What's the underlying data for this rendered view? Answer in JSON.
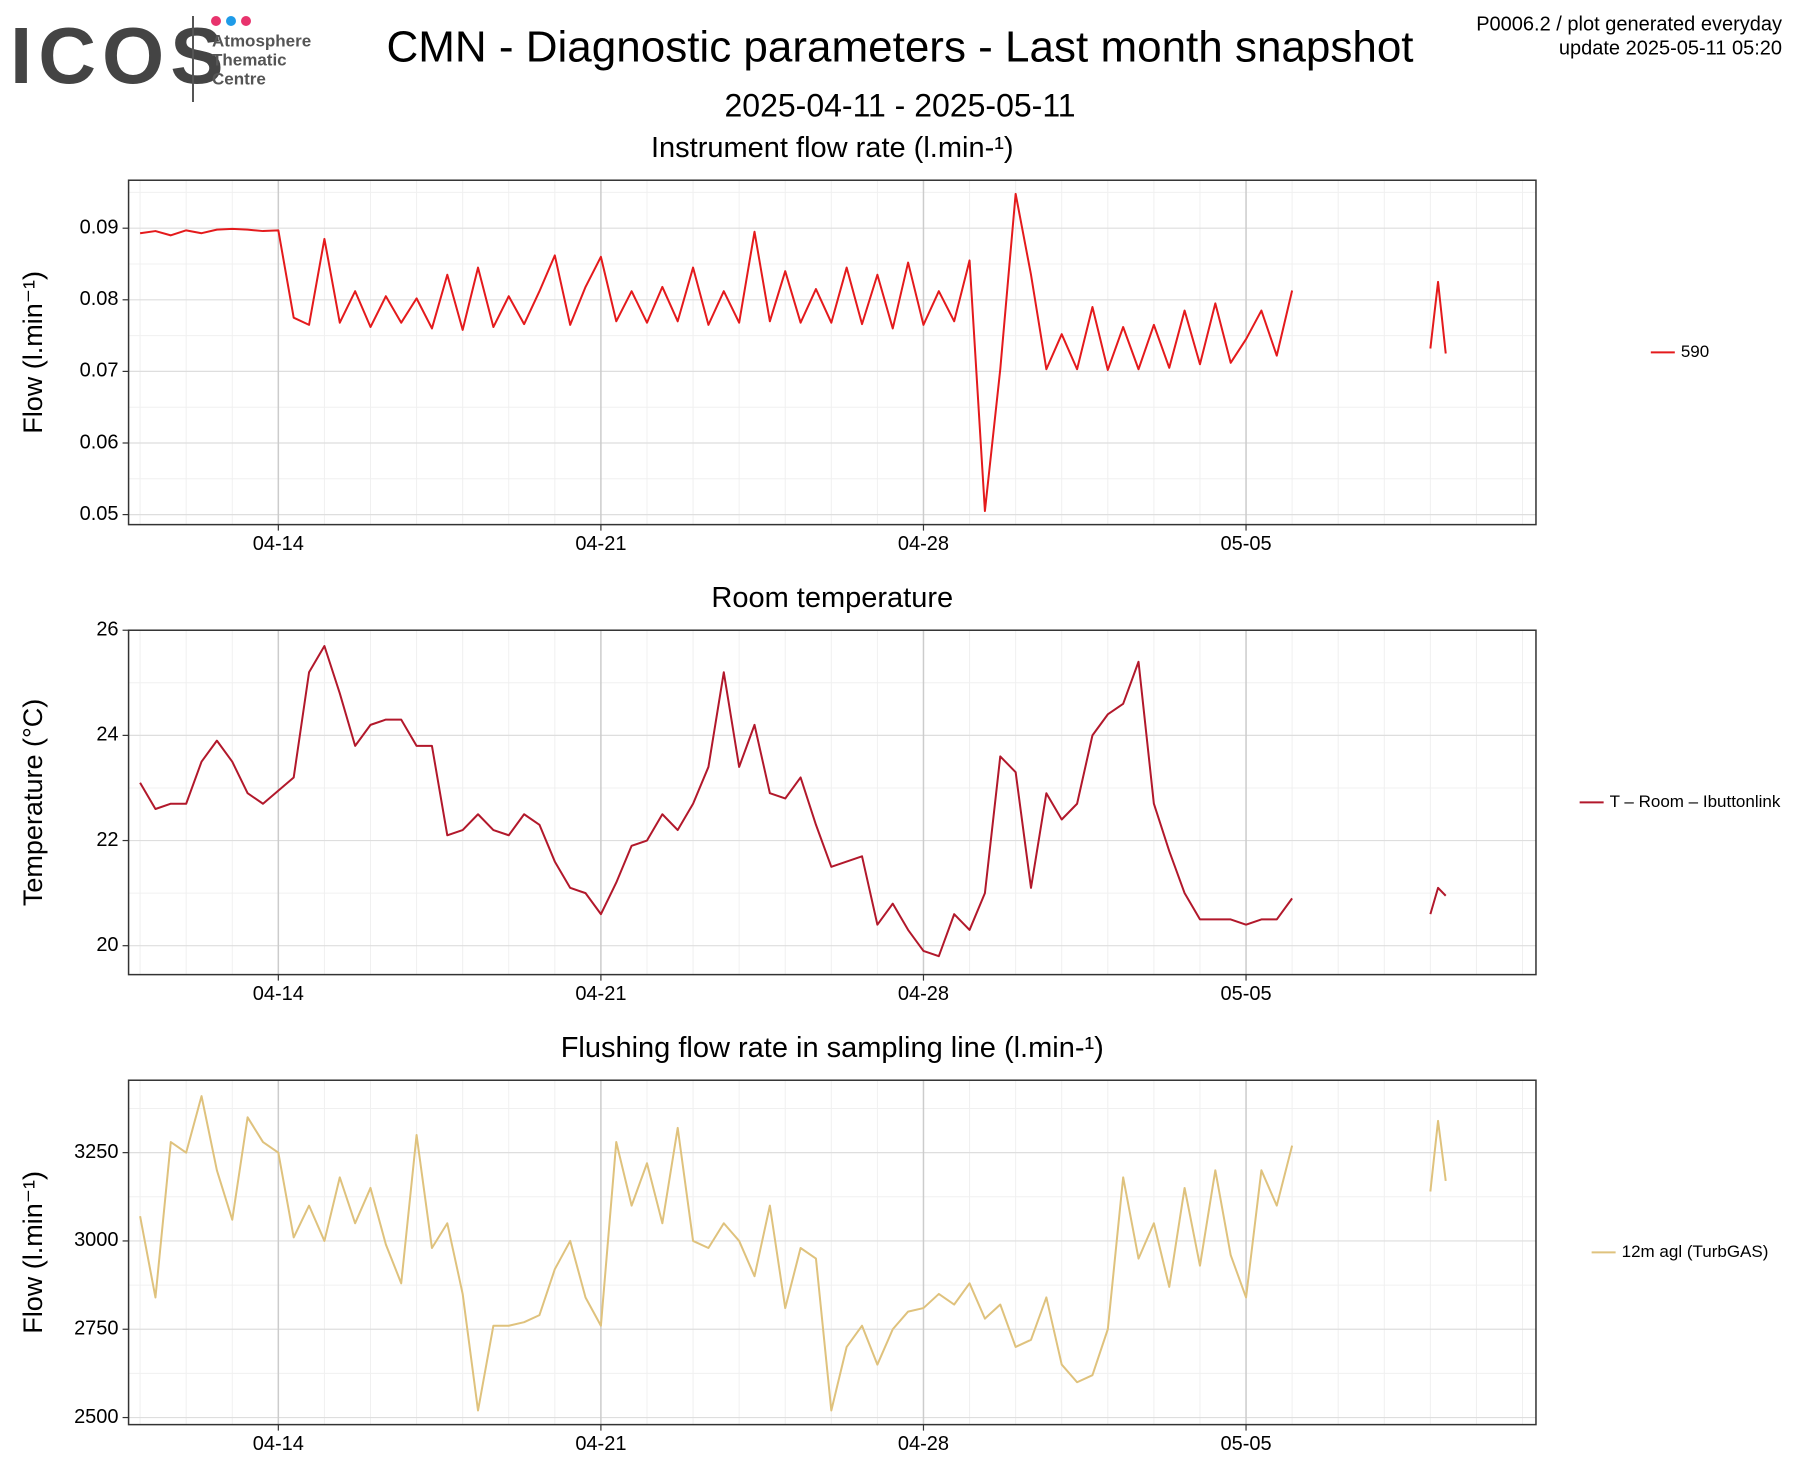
{
  "header": {
    "logo": "ICOS",
    "logo_lines": [
      "Atmosphere",
      "Thematic",
      "Centre"
    ],
    "title": "CMN - Diagnostic parameters - Last month snapshot",
    "subtitle": "2025-04-11 - 2025-05-11",
    "info": [
      "P0006.2 / plot generated everyday",
      "update  2025-05-11 05:20"
    ]
  },
  "chart_data": [
    {
      "type": "line",
      "title": "Instrument flow rate (l.min-¹)",
      "y_label": "Flow (l.min⁻¹)",
      "x": [
        "2025-04-11 00:00",
        "2025-04-11 08:00",
        "2025-04-11 16:00",
        "2025-04-12 00:00",
        "2025-04-12 08:00",
        "2025-04-12 16:00",
        "2025-04-13 00:00",
        "2025-04-13 08:00",
        "2025-04-13 16:00",
        "2025-04-14 00:00",
        "2025-04-14 08:00",
        "2025-04-14 16:00",
        "2025-04-15 00:00",
        "2025-04-15 08:00",
        "2025-04-15 16:00",
        "2025-04-16 00:00",
        "2025-04-16 08:00",
        "2025-04-16 16:00",
        "2025-04-17 00:00",
        "2025-04-17 08:00",
        "2025-04-17 16:00",
        "2025-04-18 00:00",
        "2025-04-18 08:00",
        "2025-04-18 16:00",
        "2025-04-19 00:00",
        "2025-04-19 08:00",
        "2025-04-19 16:00",
        "2025-04-20 00:00",
        "2025-04-20 08:00",
        "2025-04-20 16:00",
        "2025-04-21 00:00",
        "2025-04-21 08:00",
        "2025-04-21 16:00",
        "2025-04-22 00:00",
        "2025-04-22 08:00",
        "2025-04-22 16:00",
        "2025-04-23 00:00",
        "2025-04-23 08:00",
        "2025-04-23 16:00",
        "2025-04-24 00:00",
        "2025-04-24 08:00",
        "2025-04-24 16:00",
        "2025-04-25 00:00",
        "2025-04-25 08:00",
        "2025-04-25 16:00",
        "2025-04-26 00:00",
        "2025-04-26 08:00",
        "2025-04-26 16:00",
        "2025-04-27 00:00",
        "2025-04-27 08:00",
        "2025-04-27 16:00",
        "2025-04-28 00:00",
        "2025-04-28 08:00",
        "2025-04-28 16:00",
        "2025-04-29 00:00",
        "2025-04-29 08:00",
        "2025-04-29 16:00",
        "2025-04-30 00:00",
        "2025-04-30 08:00",
        "2025-04-30 16:00",
        "2025-05-01 00:00",
        "2025-05-01 08:00",
        "2025-05-01 16:00",
        "2025-05-02 00:00",
        "2025-05-02 08:00",
        "2025-05-02 16:00",
        "2025-05-03 00:00",
        "2025-05-03 08:00",
        "2025-05-03 16:00",
        "2025-05-04 00:00",
        "2025-05-04 08:00",
        "2025-05-04 16:00",
        "2025-05-05 00:00",
        "2025-05-05 08:00",
        "2025-05-05 16:00",
        "2025-05-06 00:00",
        "2025-05-07 12:00",
        "2025-05-09 00:00",
        "2025-05-09 04:00",
        "2025-05-09 08:00"
      ],
      "series": [
        {
          "name": "590",
          "color": "#e41a1c",
          "values": [
            0.0893,
            0.0896,
            0.089,
            0.0897,
            0.0893,
            0.0898,
            0.0899,
            0.0898,
            0.0896,
            0.0897,
            0.0775,
            0.0765,
            0.0885,
            0.0768,
            0.0812,
            0.0762,
            0.0805,
            0.0768,
            0.0802,
            0.076,
            0.0835,
            0.0758,
            0.0845,
            0.0762,
            0.0805,
            0.0766,
            0.0812,
            0.0862,
            0.0765,
            0.0818,
            0.086,
            0.077,
            0.0812,
            0.0768,
            0.0818,
            0.077,
            0.0845,
            0.0765,
            0.0812,
            0.0768,
            0.0895,
            0.077,
            0.084,
            0.0768,
            0.0815,
            0.0768,
            0.0845,
            0.0766,
            0.0835,
            0.076,
            0.0852,
            0.0765,
            0.0812,
            0.077,
            0.0855,
            0.0505,
            0.0703,
            0.0948,
            0.0835,
            0.0703,
            0.0752,
            0.0703,
            0.079,
            0.0702,
            0.0762,
            0.0703,
            0.0765,
            0.0705,
            0.0785,
            0.071,
            0.0795,
            0.0712,
            0.0745,
            0.0785,
            0.0722,
            0.0813,
            null,
            0.0732,
            0.0825,
            0.0725
          ]
        }
      ],
      "xlim": [
        "2025-04-10 18:00",
        "2025-05-11 07:00"
      ],
      "xticks": [
        {
          "value": "2025-04-14 00:00",
          "label": "04-14"
        },
        {
          "value": "2025-04-21 00:00",
          "label": "04-21"
        },
        {
          "value": "2025-04-28 00:00",
          "label": "04-28"
        },
        {
          "value": "2025-05-05 00:00",
          "label": "05-05"
        }
      ],
      "ylim": [
        0.0486,
        0.0967
      ],
      "yticks": [
        0.05,
        0.06,
        0.07,
        0.08,
        0.09
      ],
      "grid": true,
      "legend": "right"
    },
    {
      "type": "line",
      "title": "Room temperature",
      "y_label": "Temperature (°C)",
      "x": [
        "2025-04-11 00:00",
        "2025-04-11 08:00",
        "2025-04-11 16:00",
        "2025-04-12 00:00",
        "2025-04-12 08:00",
        "2025-04-12 16:00",
        "2025-04-13 00:00",
        "2025-04-13 08:00",
        "2025-04-13 16:00",
        "2025-04-14 00:00",
        "2025-04-14 08:00",
        "2025-04-14 16:00",
        "2025-04-15 00:00",
        "2025-04-15 08:00",
        "2025-04-15 16:00",
        "2025-04-16 00:00",
        "2025-04-16 08:00",
        "2025-04-16 16:00",
        "2025-04-17 00:00",
        "2025-04-17 08:00",
        "2025-04-17 16:00",
        "2025-04-18 00:00",
        "2025-04-18 08:00",
        "2025-04-18 16:00",
        "2025-04-19 00:00",
        "2025-04-19 08:00",
        "2025-04-19 16:00",
        "2025-04-20 00:00",
        "2025-04-20 08:00",
        "2025-04-20 16:00",
        "2025-04-21 00:00",
        "2025-04-21 08:00",
        "2025-04-21 16:00",
        "2025-04-22 00:00",
        "2025-04-22 08:00",
        "2025-04-22 16:00",
        "2025-04-23 00:00",
        "2025-04-23 08:00",
        "2025-04-23 16:00",
        "2025-04-24 00:00",
        "2025-04-24 08:00",
        "2025-04-24 16:00",
        "2025-04-25 00:00",
        "2025-04-25 08:00",
        "2025-04-25 16:00",
        "2025-04-26 00:00",
        "2025-04-26 08:00",
        "2025-04-26 16:00",
        "2025-04-27 00:00",
        "2025-04-27 08:00",
        "2025-04-27 16:00",
        "2025-04-28 00:00",
        "2025-04-28 08:00",
        "2025-04-28 16:00",
        "2025-04-29 00:00",
        "2025-04-29 08:00",
        "2025-04-29 16:00",
        "2025-04-30 00:00",
        "2025-04-30 08:00",
        "2025-04-30 16:00",
        "2025-05-01 00:00",
        "2025-05-01 08:00",
        "2025-05-01 16:00",
        "2025-05-02 00:00",
        "2025-05-02 08:00",
        "2025-05-02 16:00",
        "2025-05-03 00:00",
        "2025-05-03 08:00",
        "2025-05-03 16:00",
        "2025-05-04 00:00",
        "2025-05-04 08:00",
        "2025-05-04 16:00",
        "2025-05-05 00:00",
        "2025-05-05 08:00",
        "2025-05-05 16:00",
        "2025-05-06 00:00",
        "2025-05-07 12:00",
        "2025-05-09 00:00",
        "2025-05-09 04:00",
        "2025-05-09 08:00"
      ],
      "series": [
        {
          "name": "T – Room – Ibuttonlink",
          "color": "#b2182b",
          "values": [
            23.1,
            22.6,
            22.7,
            22.7,
            23.5,
            23.9,
            23.5,
            22.9,
            22.7,
            22.95,
            23.2,
            25.2,
            25.7,
            24.8,
            23.8,
            24.2,
            24.3,
            24.3,
            23.8,
            23.8,
            22.1,
            22.2,
            22.5,
            22.2,
            22.1,
            22.5,
            22.3,
            21.6,
            21.1,
            21.0,
            20.6,
            21.2,
            21.9,
            22.0,
            22.5,
            22.2,
            22.7,
            23.4,
            25.2,
            23.4,
            24.2,
            22.9,
            22.8,
            23.2,
            22.3,
            21.5,
            21.6,
            21.7,
            20.4,
            20.8,
            20.3,
            19.9,
            19.8,
            20.6,
            20.3,
            21.0,
            23.6,
            23.3,
            21.1,
            22.9,
            22.4,
            22.7,
            24.0,
            24.4,
            24.6,
            25.4,
            22.7,
            21.8,
            21.0,
            20.5,
            20.5,
            20.5,
            20.4,
            20.5,
            20.5,
            20.9,
            null,
            20.6,
            21.1,
            20.95
          ]
        }
      ],
      "xlim": [
        "2025-04-10 18:00",
        "2025-05-11 07:00"
      ],
      "xticks": [
        {
          "value": "2025-04-14 00:00",
          "label": "04-14"
        },
        {
          "value": "2025-04-21 00:00",
          "label": "04-21"
        },
        {
          "value": "2025-04-28 00:00",
          "label": "04-28"
        },
        {
          "value": "2025-05-05 00:00",
          "label": "05-05"
        }
      ],
      "ylim": [
        19.45,
        26
      ],
      "yticks": [
        20,
        22,
        24,
        26
      ],
      "grid": true,
      "legend": "right"
    },
    {
      "type": "line",
      "title": "Flushing flow rate in sampling line (l.min-¹)",
      "y_label": "Flow (l.min⁻¹)",
      "x": [
        "2025-04-11 00:00",
        "2025-04-11 08:00",
        "2025-04-11 16:00",
        "2025-04-12 00:00",
        "2025-04-12 08:00",
        "2025-04-12 16:00",
        "2025-04-13 00:00",
        "2025-04-13 08:00",
        "2025-04-13 16:00",
        "2025-04-14 00:00",
        "2025-04-14 08:00",
        "2025-04-14 16:00",
        "2025-04-15 00:00",
        "2025-04-15 08:00",
        "2025-04-15 16:00",
        "2025-04-16 00:00",
        "2025-04-16 08:00",
        "2025-04-16 16:00",
        "2025-04-17 00:00",
        "2025-04-17 08:00",
        "2025-04-17 16:00",
        "2025-04-18 00:00",
        "2025-04-18 08:00",
        "2025-04-18 16:00",
        "2025-04-19 00:00",
        "2025-04-19 08:00",
        "2025-04-19 16:00",
        "2025-04-20 00:00",
        "2025-04-20 08:00",
        "2025-04-20 16:00",
        "2025-04-21 00:00",
        "2025-04-21 08:00",
        "2025-04-21 16:00",
        "2025-04-22 00:00",
        "2025-04-22 08:00",
        "2025-04-22 16:00",
        "2025-04-23 00:00",
        "2025-04-23 08:00",
        "2025-04-23 16:00",
        "2025-04-24 00:00",
        "2025-04-24 08:00",
        "2025-04-24 16:00",
        "2025-04-25 00:00",
        "2025-04-25 08:00",
        "2025-04-25 16:00",
        "2025-04-26 00:00",
        "2025-04-26 08:00",
        "2025-04-26 16:00",
        "2025-04-27 00:00",
        "2025-04-27 08:00",
        "2025-04-27 16:00",
        "2025-04-28 00:00",
        "2025-04-28 08:00",
        "2025-04-28 16:00",
        "2025-04-29 00:00",
        "2025-04-29 08:00",
        "2025-04-29 16:00",
        "2025-04-30 00:00",
        "2025-04-30 08:00",
        "2025-04-30 16:00",
        "2025-05-01 00:00",
        "2025-05-01 08:00",
        "2025-05-01 16:00",
        "2025-05-02 00:00",
        "2025-05-02 08:00",
        "2025-05-02 16:00",
        "2025-05-03 00:00",
        "2025-05-03 08:00",
        "2025-05-03 16:00",
        "2025-05-04 00:00",
        "2025-05-04 08:00",
        "2025-05-04 16:00",
        "2025-05-05 00:00",
        "2025-05-05 08:00",
        "2025-05-05 16:00",
        "2025-05-06 00:00",
        "2025-05-07 12:00",
        "2025-05-09 00:00",
        "2025-05-09 04:00",
        "2025-05-09 08:00"
      ],
      "series": [
        {
          "name": "12m agl (TurbGAS)",
          "color": "#dfc27d",
          "values": [
            3070,
            2840,
            3280,
            3250,
            3410,
            3200,
            3060,
            3350,
            3280,
            3250,
            3010,
            3100,
            3000,
            3180,
            3050,
            3150,
            2990,
            2880,
            3300,
            2980,
            3050,
            2850,
            2520,
            2760,
            2760,
            2770,
            2790,
            2920,
            3000,
            2840,
            2760,
            3280,
            3100,
            3220,
            3050,
            3320,
            3000,
            2980,
            3050,
            3000,
            2900,
            3100,
            2810,
            2980,
            2950,
            2520,
            2700,
            2760,
            2650,
            2750,
            2800,
            2810,
            2850,
            2820,
            2880,
            2780,
            2820,
            2700,
            2720,
            2840,
            2650,
            2600,
            2620,
            2750,
            3180,
            2950,
            3050,
            2870,
            3150,
            2930,
            3200,
            2960,
            2840,
            3200,
            3100,
            3270,
            null,
            3140,
            3340,
            3170
          ]
        }
      ],
      "xlim": [
        "2025-04-10 18:00",
        "2025-05-11 07:00"
      ],
      "xticks": [
        {
          "value": "2025-04-14 00:00",
          "label": "04-14"
        },
        {
          "value": "2025-04-21 00:00",
          "label": "04-21"
        },
        {
          "value": "2025-04-28 00:00",
          "label": "04-28"
        },
        {
          "value": "2025-05-05 00:00",
          "label": "05-05"
        }
      ],
      "ylim": [
        2480,
        3455
      ],
      "yticks": [
        2500,
        2750,
        3000,
        3250
      ],
      "grid": true,
      "legend": "right"
    }
  ]
}
